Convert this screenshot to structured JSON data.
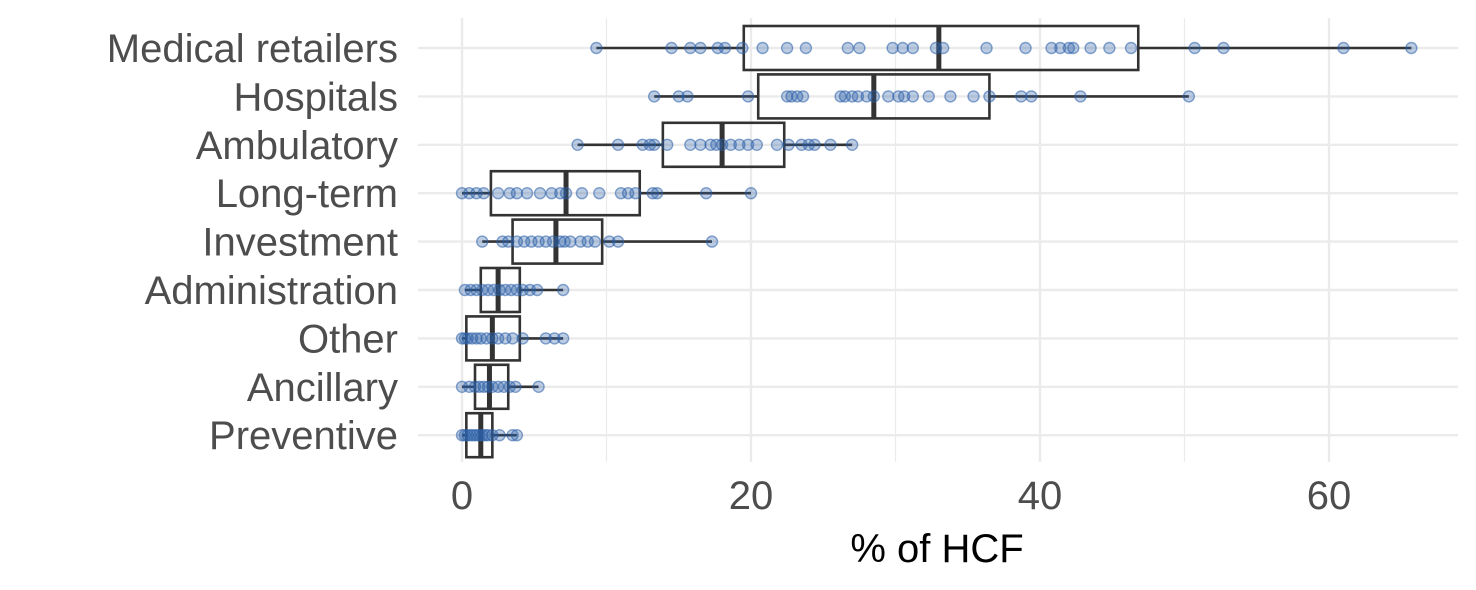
{
  "chart_data": {
    "type": "boxplot",
    "xlabel": "% of HCF",
    "ylabel": "",
    "xlim": [
      -2,
      69
    ],
    "xticks": [
      0,
      20,
      40,
      60
    ],
    "grid": true,
    "colors": {
      "point": "#2b5fa8",
      "box": "#333333",
      "grid": "#ebebeb"
    },
    "categories": [
      "Medical retailers",
      "Hospitals",
      "Ambulatory",
      "Long-term",
      "Investment",
      "Administration",
      "Other",
      "Ancillary",
      "Preventive"
    ],
    "boxes": [
      {
        "category": "Medical retailers",
        "whisker_low": 9.3,
        "q1": 19.5,
        "median": 33,
        "q3": 46.8,
        "whisker_high": 65.7,
        "points": [
          9.3,
          14.5,
          15.8,
          16.5,
          17.7,
          18.2,
          19.4,
          20.8,
          22.5,
          23.8,
          26.7,
          27.5,
          29.8,
          30.5,
          31.2,
          32.8,
          33.3,
          36.3,
          39,
          40.8,
          41.4,
          42,
          42.3,
          43.5,
          44.8,
          46.3,
          50.7,
          52.7,
          61,
          65.7
        ]
      },
      {
        "category": "Hospitals",
        "whisker_low": 13.3,
        "q1": 20.5,
        "median": 28.5,
        "q3": 36.5,
        "whisker_high": 50.3,
        "points": [
          13.3,
          15,
          15.6,
          19.8,
          22.5,
          22.8,
          23.2,
          23.6,
          26.2,
          26.5,
          27,
          27.4,
          28,
          28.5,
          29.5,
          30.2,
          30.6,
          31.2,
          32.3,
          33.8,
          35.4,
          36.5,
          38.7,
          39.4,
          42.8,
          50.3
        ]
      },
      {
        "category": "Ambulatory",
        "whisker_low": 8,
        "q1": 13.9,
        "median": 18,
        "q3": 22.3,
        "whisker_high": 27,
        "points": [
          8,
          10.8,
          12.5,
          13,
          13.3,
          14.2,
          15.8,
          16.5,
          17.2,
          17.6,
          18,
          18.6,
          19.2,
          19.8,
          20.4,
          21.8,
          22.6,
          23.5,
          24,
          24.4,
          25.5,
          27
        ]
      },
      {
        "category": "Long-term",
        "whisker_low": 0,
        "q1": 2,
        "median": 7.2,
        "q3": 12.3,
        "whisker_high": 20,
        "points": [
          0,
          0.5,
          1,
          1.5,
          2.5,
          3.3,
          3.8,
          4.5,
          5.4,
          6.2,
          6.8,
          7.2,
          8.3,
          9.5,
          11,
          11.5,
          12,
          13.2,
          13.5,
          16.9,
          20
        ]
      },
      {
        "category": "Investment",
        "whisker_low": 1.4,
        "q1": 3.5,
        "median": 6.5,
        "q3": 9.7,
        "whisker_high": 17.3,
        "points": [
          1.4,
          2.8,
          3.2,
          3.8,
          4.3,
          4.8,
          5.3,
          5.8,
          6.3,
          6.8,
          7.1,
          7.5,
          8.2,
          8.7,
          9.2,
          10.2,
          10.8,
          17.3
        ]
      },
      {
        "category": "Administration",
        "whisker_low": 0.2,
        "q1": 1.3,
        "median": 2.5,
        "q3": 4,
        "whisker_high": 7,
        "points": [
          0.2,
          0.6,
          1,
          1.4,
          1.8,
          2.2,
          2.6,
          3,
          3.4,
          3.8,
          4.2,
          4.7,
          5.2,
          7
        ]
      },
      {
        "category": "Other",
        "whisker_low": 0,
        "q1": 0.3,
        "median": 2.1,
        "q3": 4,
        "whisker_high": 7,
        "points": [
          0,
          0.2,
          0.4,
          0.7,
          1,
          1.3,
          1.7,
          2.1,
          2.5,
          3,
          3.5,
          4.2,
          5.8,
          6.4,
          7
        ]
      },
      {
        "category": "Ancillary",
        "whisker_low": 0,
        "q1": 0.9,
        "median": 1.9,
        "q3": 3.2,
        "whisker_high": 5.3,
        "points": [
          0,
          0.5,
          0.9,
          1.2,
          1.5,
          1.8,
          2.1,
          2.5,
          2.9,
          3.3,
          3.7,
          5.3
        ]
      },
      {
        "category": "Preventive",
        "whisker_low": 0,
        "q1": 0.3,
        "median": 1.3,
        "q3": 2.1,
        "whisker_high": 3.8,
        "points": [
          0,
          0.2,
          0.4,
          0.6,
          0.8,
          1,
          1.2,
          1.4,
          1.6,
          1.8,
          2.1,
          2.6,
          3.5,
          3.8
        ]
      }
    ]
  }
}
